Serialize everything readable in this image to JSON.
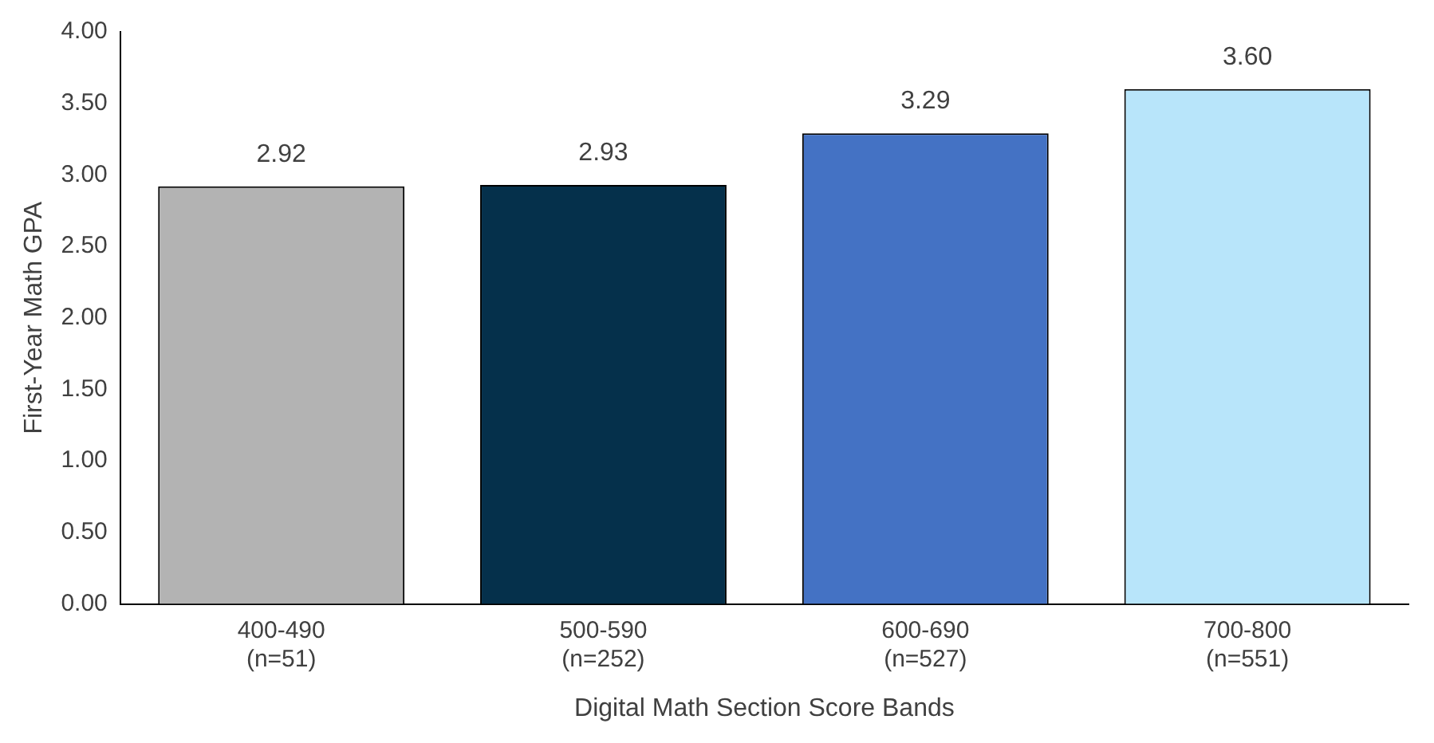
{
  "chart_data": {
    "type": "bar",
    "xlabel": "Digital Math Section Score Bands",
    "ylabel": "First-Year Math GPA",
    "categories": [
      "400-490\n(n=51)",
      "500-590\n(n=252)",
      "600-690\n(n=527)",
      "700-800\n(n=551)"
    ],
    "values": [
      2.92,
      2.93,
      3.29,
      3.6
    ],
    "value_labels": [
      "2.92",
      "2.93",
      "3.29",
      "3.60"
    ],
    "colors": [
      "#b3b3b3",
      "#05304b",
      "#4472c4",
      "#b8e5fa"
    ],
    "ylim": [
      0,
      4
    ],
    "yticks": [
      {
        "value": 0,
        "label": "0.00"
      },
      {
        "value": 0.5,
        "label": "0.50"
      },
      {
        "value": 1,
        "label": "1.00"
      },
      {
        "value": 1.5,
        "label": "1.50"
      },
      {
        "value": 2,
        "label": "2.00"
      },
      {
        "value": 2.5,
        "label": "2.50"
      },
      {
        "value": 3,
        "label": "3.00"
      },
      {
        "value": 3.5,
        "label": "3.50"
      },
      {
        "value": 4,
        "label": "4.00"
      }
    ],
    "grid": false,
    "legend": false
  }
}
